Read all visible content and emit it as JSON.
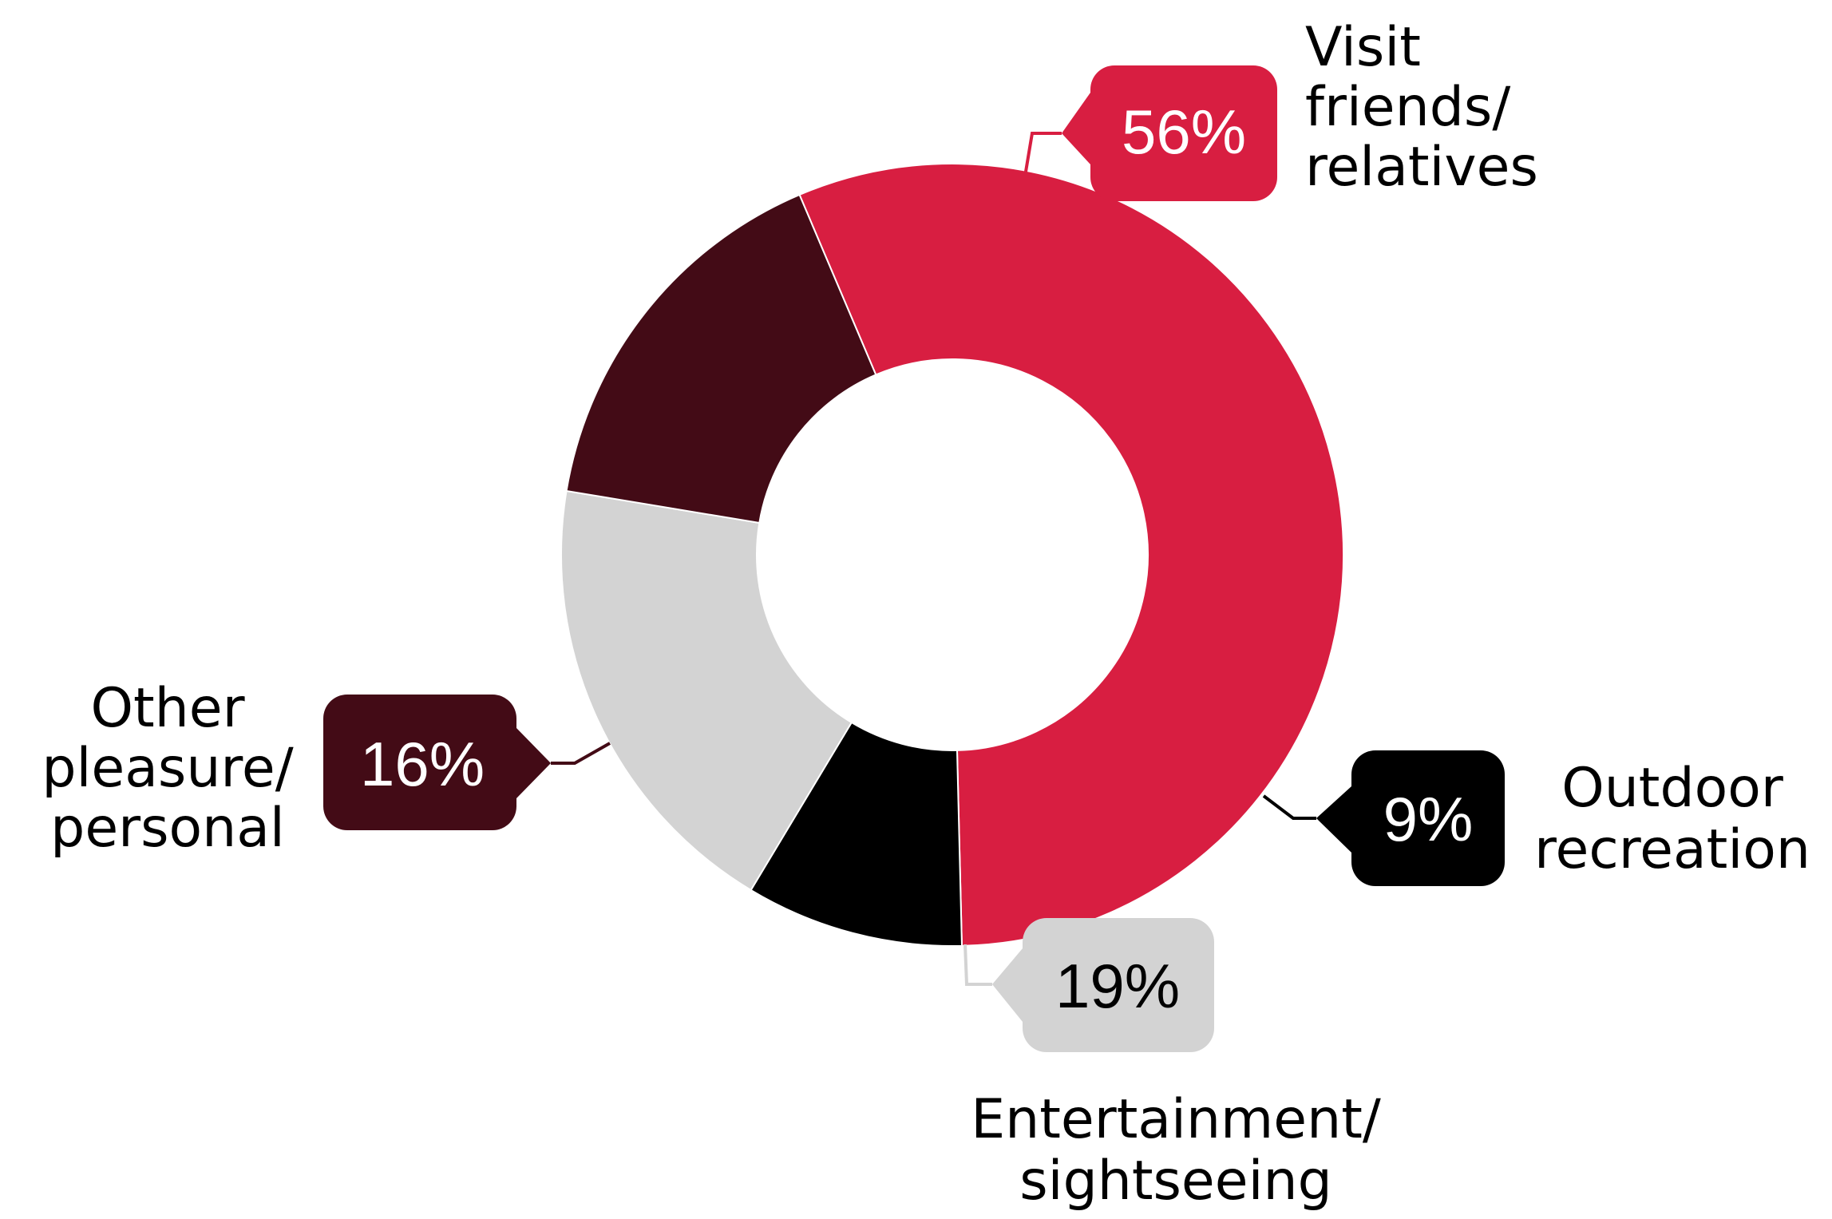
{
  "chart_data": {
    "type": "pie",
    "variant": "donut",
    "title": "",
    "categories": [
      "Visit friends/ relatives",
      "Outdoor recreation",
      "Entertainment/ sightseeing",
      "Other pleasure/ personal"
    ],
    "values": [
      56,
      9,
      19,
      16
    ],
    "value_labels": [
      "56%",
      "9%",
      "19%",
      "16%"
    ],
    "slices": [
      {
        "category": "Visit friends/ relatives",
        "value": 56,
        "value_label": "56%",
        "label_lines": [
          "Visit",
          "friends/",
          "relatives"
        ],
        "color": "#D81E41",
        "label_text_color": "#FFFFFF"
      },
      {
        "category": "Outdoor recreation",
        "value": 9,
        "value_label": "9%",
        "label_lines": [
          "Outdoor",
          "recreation"
        ],
        "color": "#000000",
        "label_text_color": "#FFFFFF"
      },
      {
        "category": "Entertainment/ sightseeing",
        "value": 19,
        "value_label": "19%",
        "label_lines": [
          "Entertainment/",
          "sightseeing"
        ],
        "color": "#D3D3D3",
        "label_text_color": "#000000"
      },
      {
        "category": "Other pleasure/ personal",
        "value": 16,
        "value_label": "16%",
        "label_lines": [
          "Other",
          "pleasure/",
          "personal"
        ],
        "color": "#430B16",
        "label_text_color": "#FFFFFF"
      }
    ],
    "legend": "none"
  }
}
